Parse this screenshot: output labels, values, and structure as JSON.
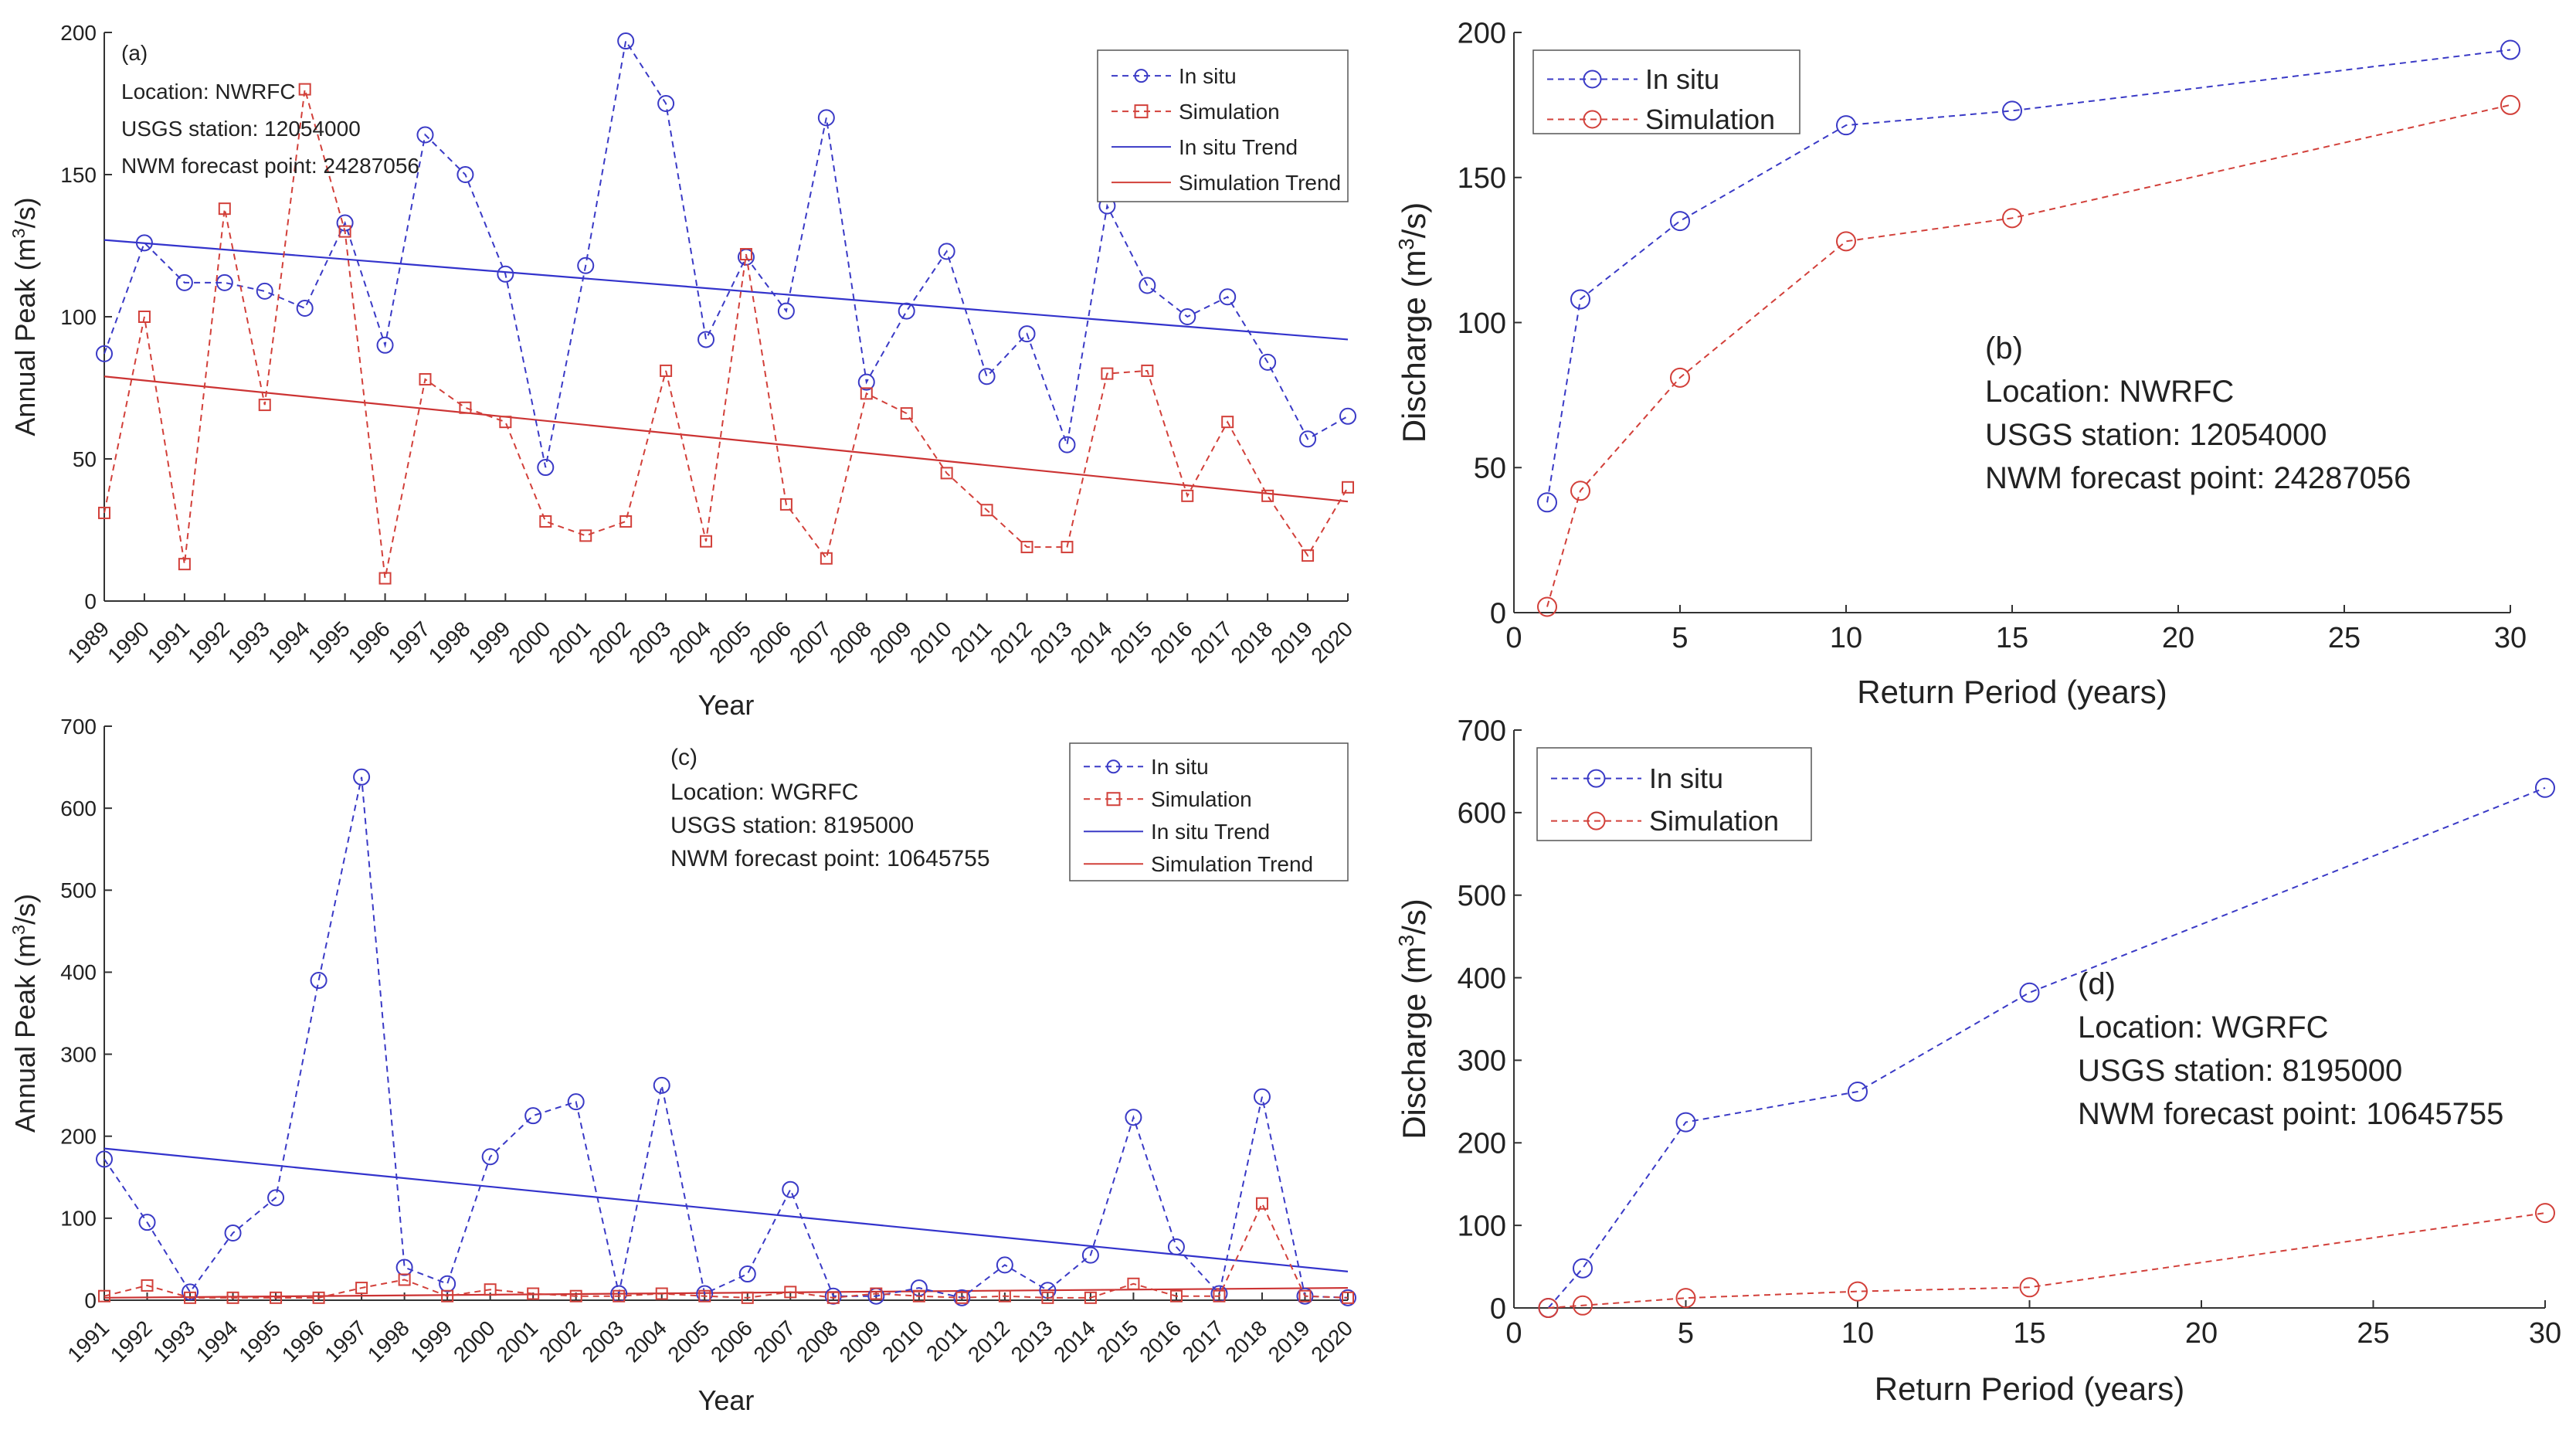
{
  "colors": {
    "insitu": "#3a3ac6",
    "simulation": "#d2403a",
    "axis": "#333333",
    "trend_blue": "#3333cc",
    "trend_red": "#cc3333"
  },
  "chart_data": [
    {
      "id": "a",
      "type": "line",
      "panel_label": "(a)",
      "info": [
        "Location: NWRFC",
        "USGS station: 12054000",
        "NWM forecast point: 24287056"
      ],
      "xlabel": "Year",
      "ylabel": "Annual Peak (m",
      "ylabel_sup": "3",
      "ylabel_end": "/s)",
      "ylim": [
        0,
        200
      ],
      "yticks": [
        0,
        50,
        100,
        150,
        200
      ],
      "xlim": [
        1989,
        2020
      ],
      "x": [
        1989,
        1990,
        1991,
        1992,
        1993,
        1994,
        1995,
        1996,
        1997,
        1998,
        1999,
        2000,
        2001,
        2002,
        2003,
        2004,
        2005,
        2006,
        2007,
        2008,
        2009,
        2010,
        2011,
        2012,
        2013,
        2014,
        2015,
        2016,
        2017,
        2018,
        2019,
        2020
      ],
      "legend": [
        "In situ",
        "Simulation",
        "In situ Trend",
        "Simulation Trend"
      ],
      "legend_position": "top-right",
      "series": [
        {
          "name": "In situ",
          "values": [
            87,
            126,
            112,
            112,
            109,
            103,
            133,
            90,
            164,
            150,
            115,
            47,
            118,
            197,
            175,
            92,
            121,
            102,
            170,
            77,
            102,
            123,
            79,
            94,
            55,
            139,
            111,
            100,
            107,
            84,
            57,
            65
          ]
        },
        {
          "name": "Simulation",
          "values": [
            31,
            100,
            13,
            138,
            69,
            180,
            130,
            8,
            78,
            68,
            63,
            28,
            23,
            28,
            81,
            21,
            122,
            34,
            15,
            73,
            66,
            45,
            32,
            19,
            19,
            80,
            81,
            37,
            63,
            37,
            16,
            40
          ]
        }
      ],
      "trends": [
        {
          "name": "In situ Trend",
          "start": 127,
          "end": 92
        },
        {
          "name": "Simulation Trend",
          "start": 79,
          "end": 35
        }
      ]
    },
    {
      "id": "b",
      "type": "line",
      "panel_label": "(b)",
      "info": [
        "Location: NWRFC",
        "USGS station: 12054000",
        "NWM forecast point: 24287056"
      ],
      "xlabel": "Return Period (years)",
      "ylabel": "Discharge (m",
      "ylabel_sup": "3",
      "ylabel_end": "/s)",
      "xlim": [
        0,
        30
      ],
      "xticks": [
        0,
        5,
        10,
        15,
        20,
        25,
        30
      ],
      "ylim": [
        0,
        200
      ],
      "yticks": [
        0,
        50,
        100,
        150,
        200
      ],
      "x": [
        1,
        2,
        5,
        10,
        15,
        30
      ],
      "legend": [
        "In situ",
        "Simulation"
      ],
      "legend_position": "top-left",
      "series": [
        {
          "name": "In situ",
          "values": [
            38,
            108,
            135,
            168,
            173,
            194
          ]
        },
        {
          "name": "Simulation",
          "values": [
            2,
            42,
            81,
            128,
            136,
            175
          ]
        }
      ]
    },
    {
      "id": "c",
      "type": "line",
      "panel_label": "(c)",
      "info": [
        "Location: WGRFC",
        "USGS station: 8195000",
        "NWM forecast point: 10645755"
      ],
      "xlabel": "Year",
      "ylabel": "Annual Peak (m",
      "ylabel_sup": "3",
      "ylabel_end": "/s)",
      "ylim": [
        0,
        700
      ],
      "yticks": [
        0,
        100,
        200,
        300,
        400,
        500,
        600,
        700
      ],
      "xlim": [
        1991,
        2020
      ],
      "x": [
        1991,
        1992,
        1993,
        1994,
        1995,
        1996,
        1997,
        1998,
        1999,
        2000,
        2001,
        2002,
        2003,
        2004,
        2005,
        2006,
        2007,
        2008,
        2009,
        2010,
        2011,
        2012,
        2013,
        2014,
        2015,
        2016,
        2017,
        2018,
        2019,
        2020
      ],
      "legend": [
        "In situ",
        "Simulation",
        "In situ Trend",
        "Simulation Trend"
      ],
      "legend_position": "top-right",
      "series": [
        {
          "name": "In situ",
          "values": [
            172,
            95,
            10,
            82,
            125,
            390,
            638,
            40,
            20,
            175,
            225,
            242,
            8,
            262,
            8,
            32,
            135,
            5,
            5,
            15,
            3,
            43,
            12,
            55,
            223,
            65,
            8,
            248,
            5,
            3
          ]
        },
        {
          "name": "Simulation",
          "values": [
            5,
            18,
            3,
            3,
            3,
            3,
            15,
            25,
            5,
            13,
            8,
            5,
            5,
            8,
            5,
            3,
            10,
            3,
            8,
            5,
            3,
            5,
            3,
            3,
            20,
            5,
            5,
            118,
            5,
            3
          ]
        }
      ],
      "trends": [
        {
          "name": "In situ Trend",
          "start": 185,
          "end": 35
        },
        {
          "name": "Simulation Trend",
          "start": 3,
          "end": 15
        }
      ]
    },
    {
      "id": "d",
      "type": "line",
      "panel_label": "(d)",
      "info": [
        "Location: WGRFC",
        "USGS station: 8195000",
        "NWM forecast point: 10645755"
      ],
      "xlabel": "Return Period (years)",
      "ylabel": "Discharge (m",
      "ylabel_sup": "3",
      "ylabel_end": "/s)",
      "xlim": [
        0,
        30
      ],
      "xticks": [
        0,
        5,
        10,
        15,
        20,
        25,
        30
      ],
      "ylim": [
        0,
        700
      ],
      "yticks": [
        0,
        100,
        200,
        300,
        400,
        500,
        600,
        700
      ],
      "x": [
        1,
        2,
        5,
        10,
        15,
        30
      ],
      "legend": [
        "In situ",
        "Simulation"
      ],
      "legend_position": "top-left",
      "series": [
        {
          "name": "In situ",
          "values": [
            0,
            48,
            225,
            262,
            382,
            630
          ]
        },
        {
          "name": "Simulation",
          "values": [
            0,
            3,
            12,
            20,
            25,
            115
          ]
        }
      ]
    }
  ]
}
